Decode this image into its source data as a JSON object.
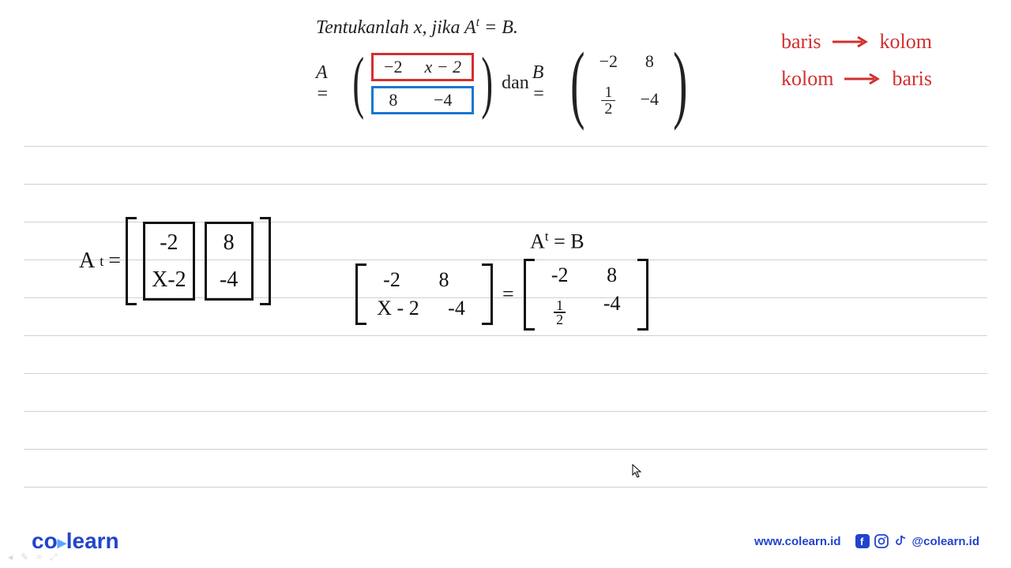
{
  "problem": {
    "title_prefix": "Tentukanlah ",
    "title_var": "x",
    "title_mid": ", jika ",
    "title_eq_lhs": "A",
    "title_eq_sup": "t",
    "title_eq_rhs": " = B.",
    "A_label": "A =",
    "dan": " dan  ",
    "B_label": "B =",
    "A_row1": [
      "−2",
      "x − 2"
    ],
    "A_row2": [
      "8",
      "−4"
    ],
    "B_row1": [
      "−2",
      "8"
    ],
    "B_row2_frac": {
      "num": "1",
      "den": "2"
    },
    "B_row2_c2": "−4",
    "row1_color": "#d32f2f",
    "row2_color": "#1976d2"
  },
  "notes": {
    "line1_left": "baris",
    "line1_right": "kolom",
    "line2_left": "kolom",
    "line2_right": "baris",
    "color": "#d32f2f"
  },
  "work1": {
    "label_A": "A",
    "label_sup": "t",
    "eq": "= ",
    "col1": [
      "-2",
      "X-2"
    ],
    "col2": [
      "8",
      "-4"
    ],
    "col1_color": "#d32f2f",
    "col2_color": "#1976d2"
  },
  "work2": {
    "title_A": "A",
    "title_sup": "t",
    "title_rest": " = B",
    "L_row1": [
      "-2",
      "8"
    ],
    "L_row2": [
      "X - 2",
      "-4"
    ],
    "eq": "=",
    "R_row1": [
      "-2",
      "8"
    ],
    "R_row2_frac": {
      "num": "1",
      "den": "2"
    },
    "R_row2_c2": "-4"
  },
  "footer": {
    "logo_co": "co",
    "logo_learn": "learn",
    "url": "www.colearn.id",
    "handle": "@colearn.id"
  },
  "lines": {
    "positions": [
      0,
      48,
      96,
      144,
      192,
      240,
      288,
      336,
      384,
      432
    ]
  }
}
